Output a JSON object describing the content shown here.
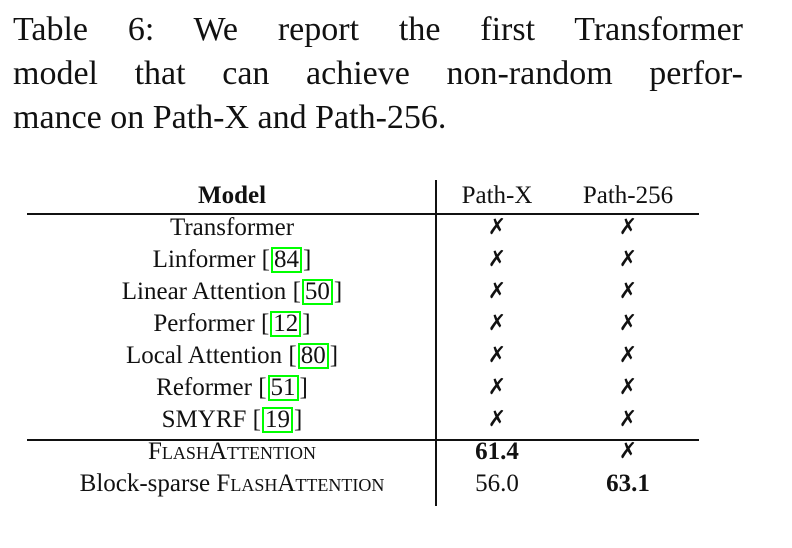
{
  "caption": {
    "line1": "Table 6:  We report the first Transformer",
    "line2": "model that can achieve non-random perfor-",
    "line3": "mance on Path-X and Path-256."
  },
  "table": {
    "headers": [
      "Model",
      "Path-X",
      "Path-256"
    ],
    "rows": [
      {
        "model": "Transformer",
        "cite": "",
        "path_x": "✗",
        "path_256": "✗"
      },
      {
        "model": "Linformer ",
        "cite": "84",
        "path_x": "✗",
        "path_256": "✗"
      },
      {
        "model": "Linear Attention ",
        "cite": "50",
        "path_x": "✗",
        "path_256": "✗"
      },
      {
        "model": "Performer ",
        "cite": "12",
        "path_x": "✗",
        "path_256": "✗"
      },
      {
        "model": "Local Attention ",
        "cite": "80",
        "path_x": "✗",
        "path_256": "✗"
      },
      {
        "model": "Reformer ",
        "cite": "51",
        "path_x": "✗",
        "path_256": "✗"
      },
      {
        "model": "SMYRF ",
        "cite": "19",
        "path_x": "✗",
        "path_256": "✗"
      }
    ],
    "flash_rows": [
      {
        "prefix": "",
        "model": "FlashAttention",
        "path_x": "61.4",
        "path_256": "✗"
      },
      {
        "prefix": "Block-sparse ",
        "model": "FlashAttention",
        "path_x": "56.0",
        "path_256": "63.1"
      }
    ]
  },
  "colors": {
    "cite_box": "#00ff00",
    "text": "#111111"
  }
}
